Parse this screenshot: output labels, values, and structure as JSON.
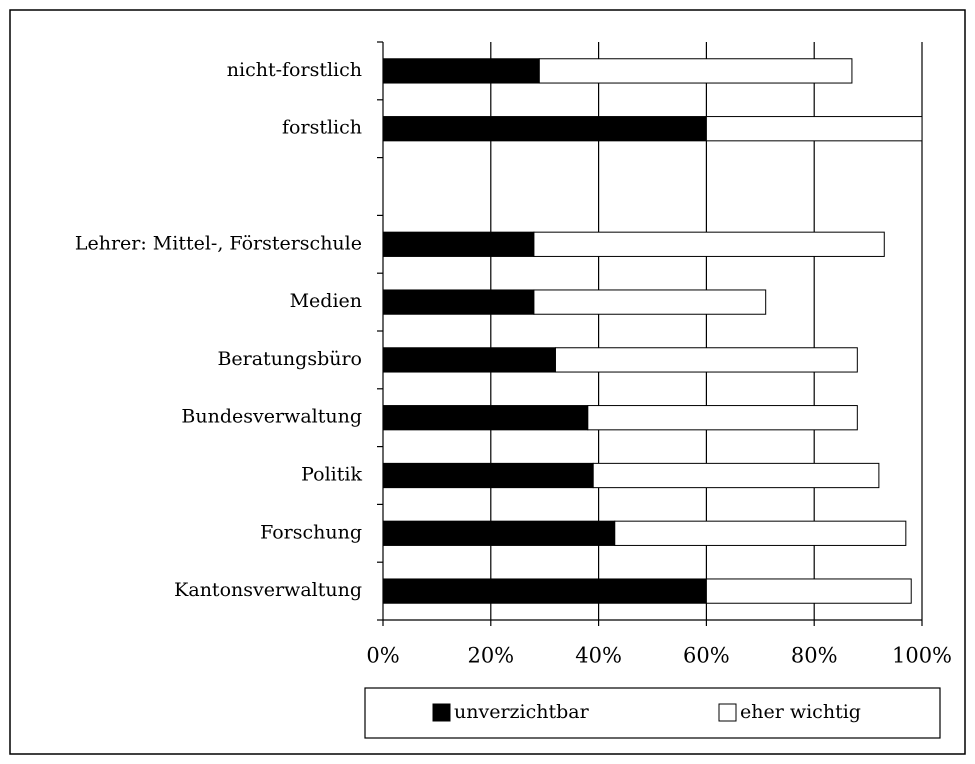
{
  "chart_data": {
    "type": "stacked-barh",
    "categories": [
      "nicht-forstlich",
      "forstlich",
      null,
      "Lehrer: Mittel-, Försterschule",
      "Medien",
      "Beratungsbüro",
      "Bundesverwaltung",
      "Politik",
      "Forschung",
      "Kantonsverwaltung"
    ],
    "series": [
      {
        "name": "unverzichtbar",
        "color": "#000000",
        "values": [
          29,
          60,
          null,
          28,
          28,
          32,
          38,
          39,
          43,
          60
        ]
      },
      {
        "name": "eher wichtig",
        "color": "#ffffff",
        "values": [
          58,
          40,
          null,
          65,
          43,
          56,
          50,
          53,
          54,
          38
        ]
      }
    ],
    "xlim": [
      0,
      100
    ],
    "xticks": [
      {
        "value": 0,
        "label": "0%"
      },
      {
        "value": 20,
        "label": "20%"
      },
      {
        "value": 40,
        "label": "40%"
      },
      {
        "value": 60,
        "label": "60%"
      },
      {
        "value": 80,
        "label": "80%"
      },
      {
        "value": 100,
        "label": "100%"
      }
    ],
    "grid": true,
    "legend": "bottom"
  }
}
